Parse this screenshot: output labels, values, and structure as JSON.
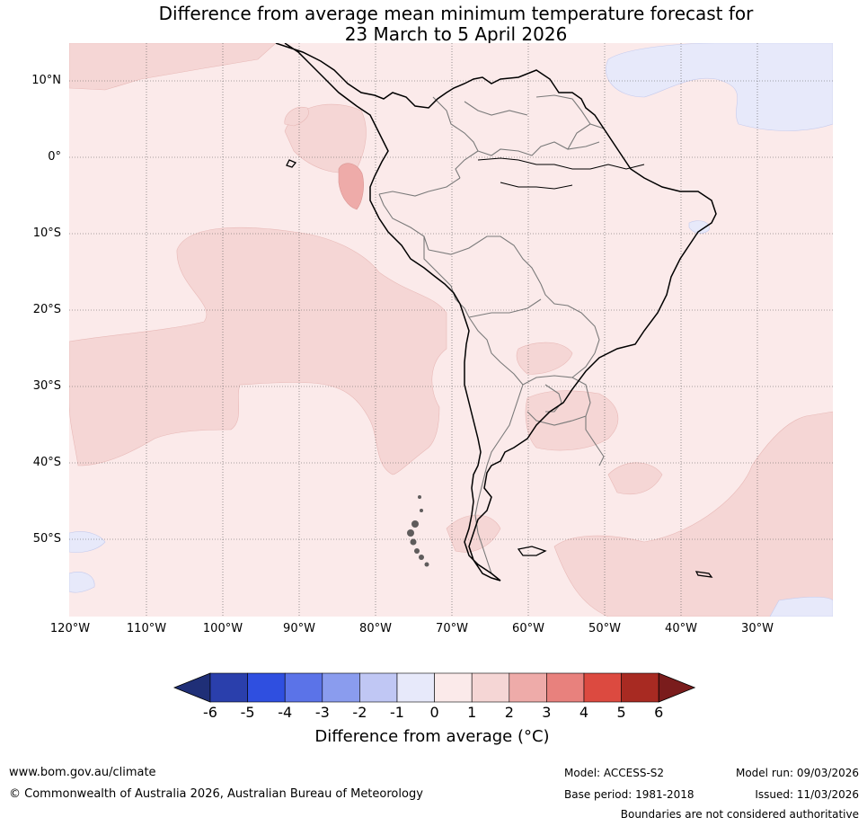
{
  "title": {
    "line1": "Difference from average mean minimum temperature forecast for",
    "line2": "23 March to 5 April 2026"
  },
  "map": {
    "region": "South America",
    "lat_labels": [
      "10°N",
      "0°",
      "10°S",
      "20°S",
      "30°S",
      "40°S",
      "50°S"
    ],
    "lon_labels": [
      "120°W",
      "110°W",
      "100°W",
      "90°W",
      "80°W",
      "70°W",
      "60°W",
      "50°W",
      "40°W",
      "30°W"
    ]
  },
  "colorbar": {
    "ticks": [
      "-6",
      "-5",
      "-4",
      "-3",
      "-2",
      "-1",
      "0",
      "1",
      "2",
      "3",
      "4",
      "5",
      "6"
    ],
    "colors": [
      "#1f2f77",
      "#2a3fac",
      "#2f4fe0",
      "#5b73e8",
      "#8a9cee",
      "#c0c7f4",
      "#e7e9fa",
      "#fbeaea",
      "#f5d6d5",
      "#eeaba9",
      "#e8817d",
      "#dc4a40",
      "#a82a22",
      "#7a1c1c"
    ],
    "title": "Difference from average (°C)"
  },
  "footer": {
    "website": "www.bom.gov.au/climate",
    "copyright": "© Commonwealth of Australia 2026, Australian Bureau of Meteorology",
    "model": "Model: ACCESS-S2",
    "base_period": "Base period: 1981-2018",
    "model_run": "Model run: 09/03/2026",
    "issued": "Issued: 11/03/2026",
    "disclaimer": "Boundaries are not considered authoritative"
  }
}
